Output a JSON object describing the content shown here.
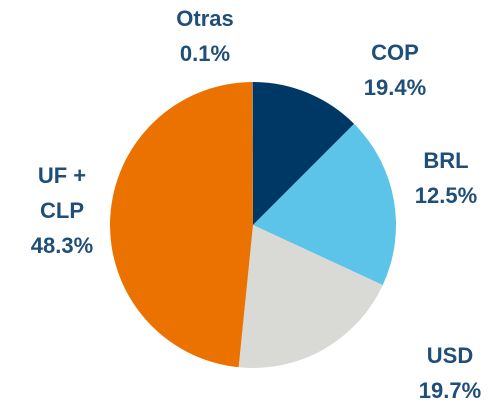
{
  "chart_data": {
    "type": "pie",
    "categories": [
      "BRL",
      "COP",
      "USD",
      "UF + CLP",
      "Otras"
    ],
    "values": [
      12.5,
      19.4,
      19.7,
      48.3,
      0.1
    ],
    "value_labels": [
      "12.5%",
      "19.4%",
      "19.7%",
      "48.3%",
      "0.1%"
    ],
    "colors": [
      "#003865",
      "#5bc4e8",
      "#d9d9d6",
      "#ec7200",
      "#7f7f7f"
    ]
  }
}
